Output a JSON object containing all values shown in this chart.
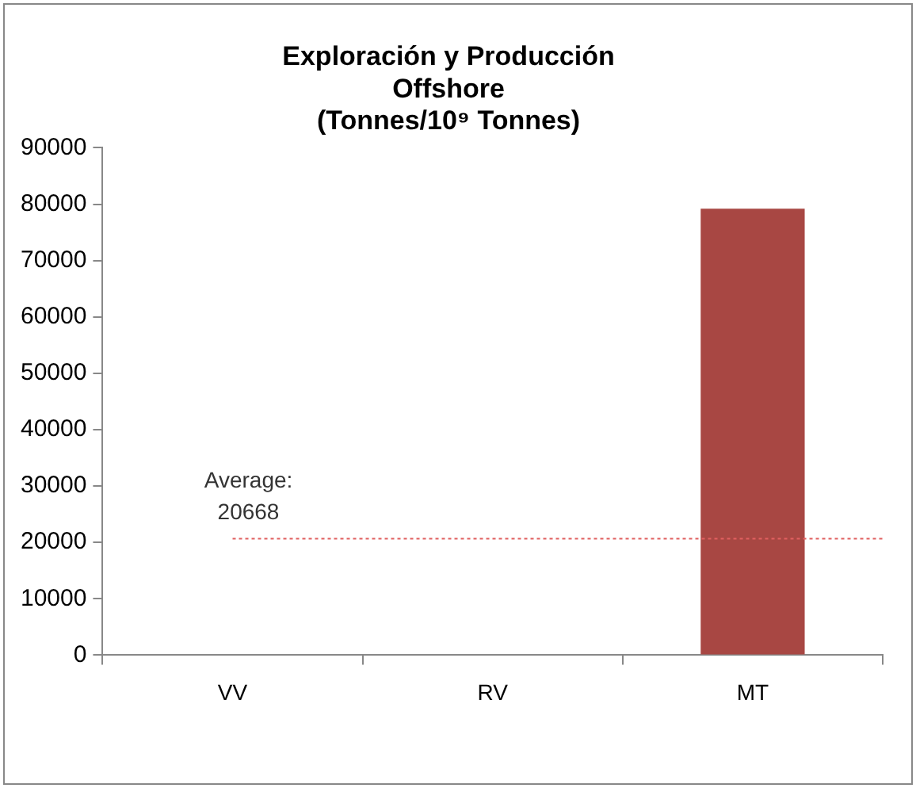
{
  "chart_data": {
    "type": "bar",
    "title": "Exploración y Producción Offshore (Tonnes/10⁹ Tonnes)",
    "categories": [
      "VV",
      "RV",
      "MT"
    ],
    "values": [
      0,
      0,
      79200
    ],
    "color": "#a84743",
    "ylim": [
      0,
      90000
    ],
    "yticks": [
      0,
      10000,
      20000,
      30000,
      40000,
      50000,
      60000,
      70000,
      80000,
      90000
    ],
    "grid": false,
    "legend": false,
    "ref_lines": [
      {
        "axis": "y",
        "value": 20668,
        "label": "Average: 20668",
        "color": "#e06060",
        "line_style": "dotted"
      }
    ]
  }
}
